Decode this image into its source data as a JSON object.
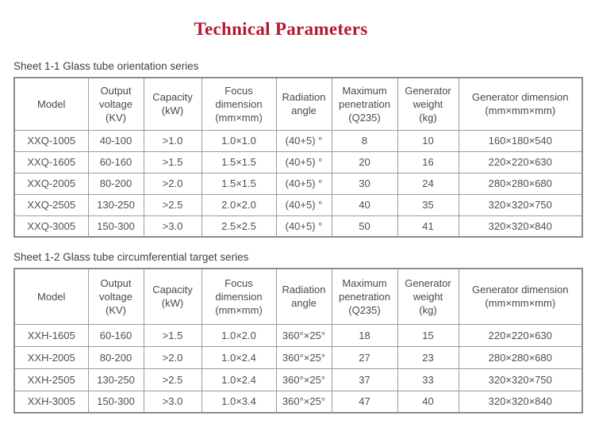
{
  "page": {
    "title": "Technical Parameters",
    "title_color": "#b5172d"
  },
  "sheet1": {
    "caption": "Sheet 1-1 Glass tube orientation series",
    "headers": [
      "Model",
      "Output\nvoltage\n(KV)",
      "Capacity\n(kW)",
      "Focus\ndimension\n(mm×mm)",
      "Radiation\nangle",
      "Maximum\npenetration\n(Q235)",
      "Generator\nweight\n(kg)",
      "Generator dimension\n(mm×mm×mm)"
    ],
    "rows": [
      [
        "XXQ-1005",
        "40-100",
        ">1.0",
        "1.0×1.0",
        "(40+5) °",
        "8",
        "10",
        "160×180×540"
      ],
      [
        "XXQ-1605",
        "60-160",
        ">1.5",
        "1.5×1.5",
        "(40+5) °",
        "20",
        "16",
        "220×220×630"
      ],
      [
        "XXQ-2005",
        "80-200",
        ">2.0",
        "1.5×1.5",
        "(40+5) °",
        "30",
        "24",
        "280×280×680"
      ],
      [
        "XXQ-2505",
        "130-250",
        ">2.5",
        "2.0×2.0",
        "(40+5) °",
        "40",
        "35",
        "320×320×750"
      ],
      [
        "XXQ-3005",
        "150-300",
        ">3.0",
        "2.5×2.5",
        "(40+5) °",
        "50",
        "41",
        "320×320×840"
      ]
    ]
  },
  "sheet2": {
    "caption": "Sheet 1-2 Glass tube circumferential target series",
    "headers": [
      "Model",
      "Output\nvoltage\n(KV)",
      "Capacity\n(kW)",
      "Focus\ndimension\n(mm×mm)",
      "Radiation\nangle",
      "Maximum\npenetration\n(Q235)",
      "Generator\nweight\n(kg)",
      "Generator dimension\n(mm×mm×mm)"
    ],
    "rows": [
      [
        "XXH-1605",
        "60-160",
        ">1.5",
        "1.0×2.0",
        "360°×25°",
        "18",
        "15",
        "220×220×630"
      ],
      [
        "XXH-2005",
        "80-200",
        ">2.0",
        "1.0×2.4",
        "360°×25°",
        "27",
        "23",
        "280×280×680"
      ],
      [
        "XXH-2505",
        "130-250",
        ">2.5",
        "1.0×2.4",
        "360°×25°",
        "37",
        "33",
        "320×320×750"
      ],
      [
        "XXH-3005",
        "150-300",
        ">3.0",
        "1.0×3.4",
        "360°×25°",
        "47",
        "40",
        "320×320×840"
      ]
    ]
  }
}
